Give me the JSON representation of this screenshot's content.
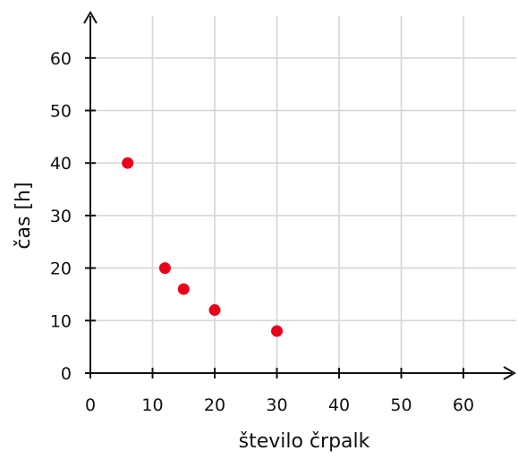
{
  "chart_data": {
    "type": "scatter",
    "xlabel": "število črpalk",
    "ylabel": "čas [h]",
    "xlim": [
      0,
      68
    ],
    "ylim": [
      0,
      68
    ],
    "x_ticks": [
      0,
      10,
      20,
      30,
      40,
      50,
      60
    ],
    "y_ticks": [
      0,
      10,
      20,
      30,
      40,
      50,
      60
    ],
    "grid": true,
    "marker_color": "#e8001c",
    "points": [
      {
        "x": 6,
        "y": 40
      },
      {
        "x": 12,
        "y": 20
      },
      {
        "x": 15,
        "y": 16
      },
      {
        "x": 20,
        "y": 12
      },
      {
        "x": 30,
        "y": 8
      }
    ]
  }
}
